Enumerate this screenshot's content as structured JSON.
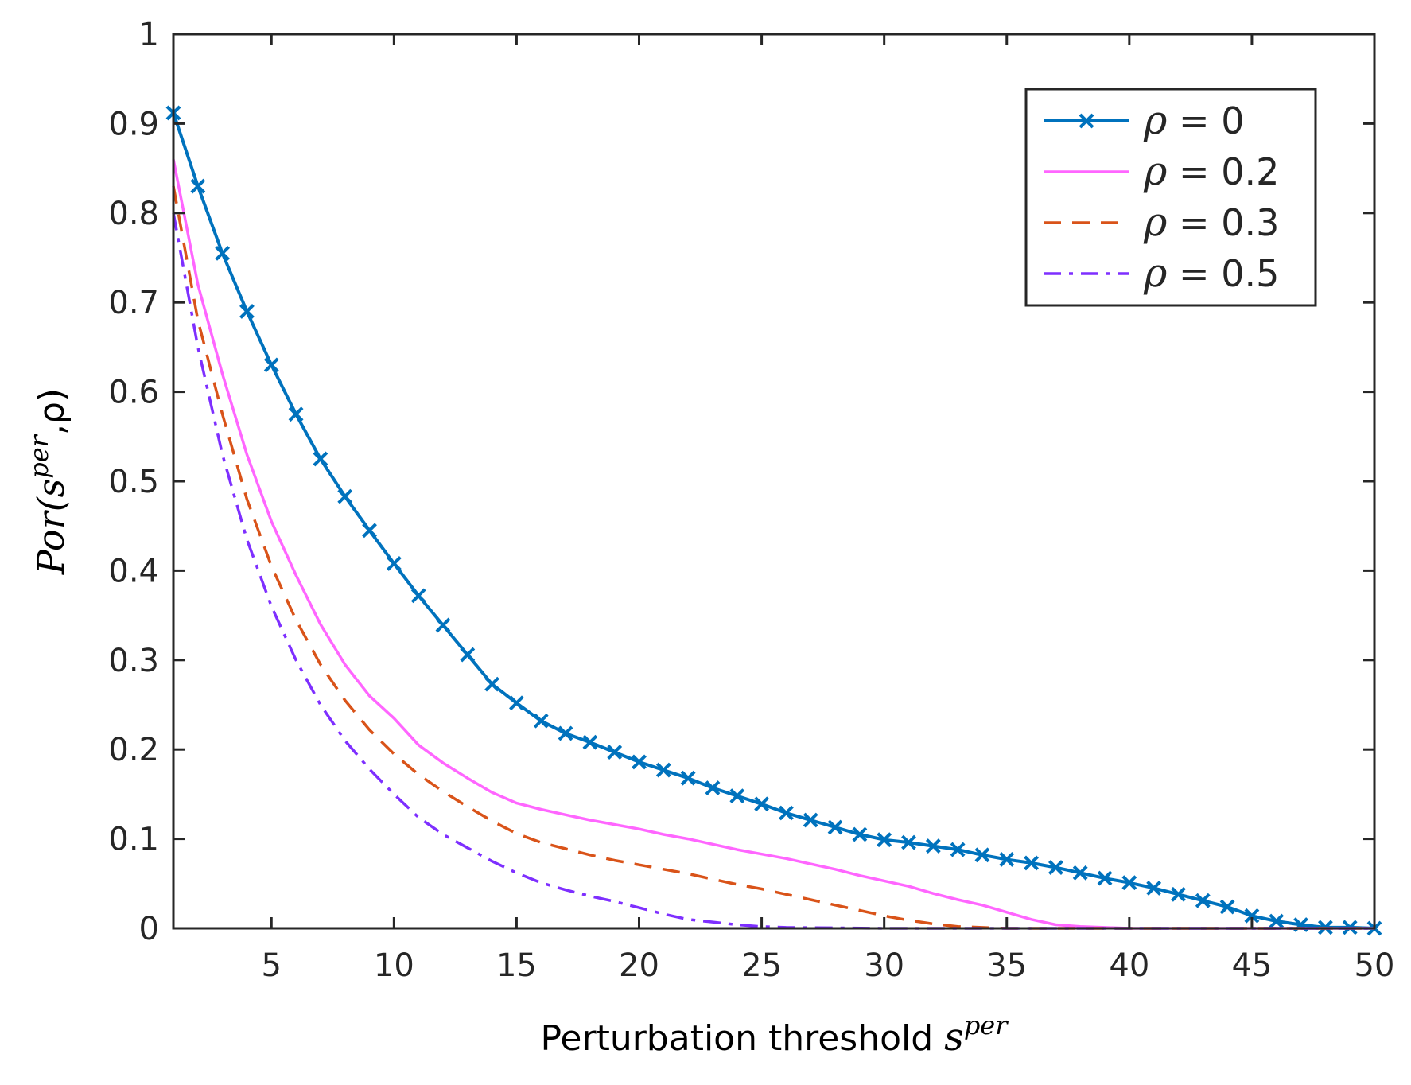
{
  "chart_data": {
    "type": "line",
    "xlabel": {
      "text": "Perturbation threshold ",
      "symbol": "s",
      "superscript": "per"
    },
    "ylabel": {
      "text": "Por(",
      "symbol": "s",
      "superscript": "per",
      "tail": ",ρ)"
    },
    "xlim": [
      1,
      50
    ],
    "ylim": [
      0,
      1
    ],
    "xticks": [
      5,
      10,
      15,
      20,
      25,
      30,
      35,
      40,
      45,
      50
    ],
    "yticks": [
      0,
      0.1,
      0.2,
      0.3,
      0.4,
      0.5,
      0.6,
      0.7,
      0.8,
      0.9,
      1
    ],
    "ytick_labels": [
      "0",
      "0.1",
      "0.2",
      "0.3",
      "0.4",
      "0.5",
      "0.6",
      "0.7",
      "0.8",
      "0.9",
      "1"
    ],
    "legend_position": "top-right",
    "series": [
      {
        "name": "ρ = 0",
        "symbol": "ρ",
        "value_text": "= 0",
        "color": "#0072BD",
        "style": "solid",
        "marker": "x",
        "x": [
          1,
          2,
          3,
          4,
          5,
          6,
          7,
          8,
          9,
          10,
          11,
          12,
          13,
          14,
          15,
          16,
          17,
          18,
          19,
          20,
          21,
          22,
          23,
          24,
          25,
          26,
          27,
          28,
          29,
          30,
          31,
          32,
          33,
          34,
          35,
          36,
          37,
          38,
          39,
          40,
          41,
          42,
          43,
          44,
          45,
          46,
          47,
          48,
          49,
          50
        ],
        "y": [
          0.912,
          0.83,
          0.755,
          0.69,
          0.63,
          0.575,
          0.525,
          0.483,
          0.445,
          0.408,
          0.372,
          0.339,
          0.306,
          0.273,
          0.252,
          0.232,
          0.218,
          0.208,
          0.197,
          0.186,
          0.177,
          0.168,
          0.157,
          0.148,
          0.139,
          0.129,
          0.121,
          0.113,
          0.105,
          0.099,
          0.096,
          0.092,
          0.088,
          0.082,
          0.077,
          0.073,
          0.068,
          0.062,
          0.056,
          0.051,
          0.045,
          0.038,
          0.031,
          0.024,
          0.014,
          0.008,
          0.004,
          0.001,
          0.001,
          0.0
        ]
      },
      {
        "name": "ρ = 0.2",
        "symbol": "ρ",
        "value_text": "= 0.2",
        "color": "#FF66FF",
        "style": "solid",
        "marker": "none",
        "x": [
          1,
          2,
          3,
          4,
          5,
          6,
          7,
          8,
          9,
          10,
          11,
          12,
          13,
          14,
          15,
          16,
          17,
          18,
          19,
          20,
          21,
          22,
          23,
          24,
          25,
          26,
          27,
          28,
          29,
          30,
          31,
          32,
          33,
          34,
          35,
          36,
          37,
          38,
          39,
          40,
          45,
          50
        ],
        "y": [
          0.86,
          0.72,
          0.62,
          0.53,
          0.455,
          0.395,
          0.34,
          0.295,
          0.26,
          0.235,
          0.205,
          0.185,
          0.168,
          0.152,
          0.14,
          0.133,
          0.127,
          0.121,
          0.116,
          0.111,
          0.105,
          0.1,
          0.094,
          0.088,
          0.083,
          0.078,
          0.072,
          0.066,
          0.059,
          0.053,
          0.047,
          0.039,
          0.032,
          0.026,
          0.018,
          0.01,
          0.004,
          0.002,
          0.001,
          0.0,
          0.0,
          0.0
        ]
      },
      {
        "name": "ρ = 0.3",
        "symbol": "ρ",
        "value_text": "= 0.3",
        "color": "#D95319",
        "style": "dashed",
        "marker": "none",
        "x": [
          1,
          2,
          3,
          4,
          5,
          6,
          7,
          8,
          9,
          10,
          11,
          12,
          13,
          14,
          15,
          16,
          17,
          18,
          19,
          20,
          21,
          22,
          23,
          24,
          25,
          26,
          27,
          28,
          29,
          30,
          31,
          32,
          33,
          34,
          35,
          40,
          50
        ],
        "y": [
          0.83,
          0.68,
          0.575,
          0.48,
          0.405,
          0.345,
          0.295,
          0.255,
          0.222,
          0.195,
          0.172,
          0.153,
          0.136,
          0.12,
          0.106,
          0.096,
          0.089,
          0.082,
          0.076,
          0.071,
          0.066,
          0.061,
          0.055,
          0.049,
          0.044,
          0.038,
          0.032,
          0.026,
          0.02,
          0.014,
          0.009,
          0.005,
          0.002,
          0.001,
          0.0,
          0.0,
          0.0
        ]
      },
      {
        "name": "ρ = 0.5",
        "symbol": "ρ",
        "value_text": "= 0.5",
        "color": "#7E2FFF",
        "style": "dashdot",
        "marker": "none",
        "x": [
          1,
          2,
          3,
          4,
          5,
          6,
          7,
          8,
          9,
          10,
          11,
          12,
          13,
          14,
          15,
          16,
          17,
          18,
          19,
          20,
          21,
          22,
          23,
          24,
          25,
          26,
          30,
          40,
          50
        ],
        "y": [
          0.8,
          0.65,
          0.53,
          0.435,
          0.36,
          0.3,
          0.25,
          0.21,
          0.178,
          0.15,
          0.124,
          0.105,
          0.09,
          0.075,
          0.062,
          0.051,
          0.043,
          0.036,
          0.03,
          0.023,
          0.016,
          0.01,
          0.007,
          0.004,
          0.002,
          0.001,
          0.0,
          0.0,
          0.0
        ]
      }
    ]
  }
}
